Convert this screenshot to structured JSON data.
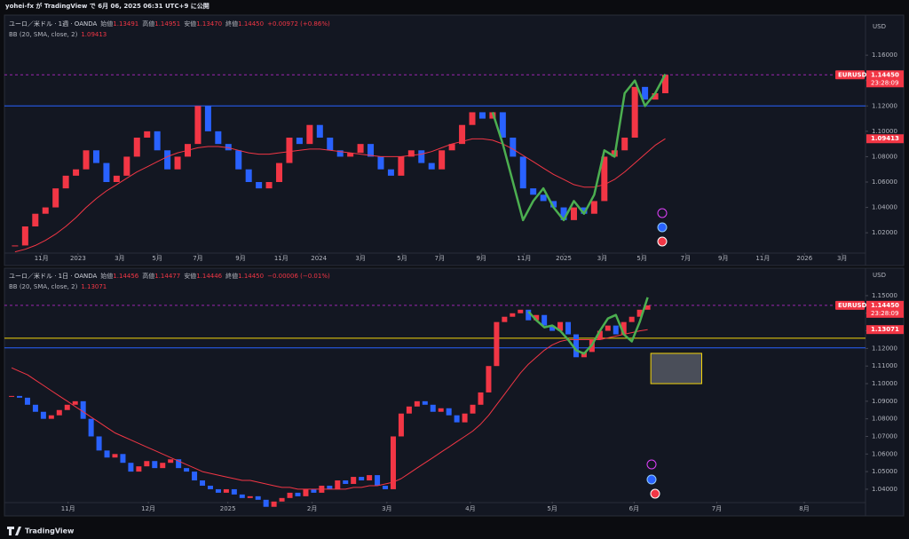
{
  "header": {
    "text": "yohei-fx が TradingView で 6月 06, 2025 06:31 UTC+9 に公開"
  },
  "footer": {
    "brand": "TradingView"
  },
  "chart_data": [
    {
      "type": "candlestick",
      "symbol": "ユーロ／米ドル · 1週 · OANDA",
      "ohlc": [
        {
          "label": "始値",
          "value": "1.13491"
        },
        {
          "label": "高値",
          "value": "1.14951"
        },
        {
          "label": "安値",
          "value": "1.13470"
        },
        {
          "label": "終値",
          "value": "1.14450"
        }
      ],
      "change": "+0.00972 (+0.86%)",
      "indicator": "BB (20, SMA, close, 2)",
      "bb_value": {
        "value": 1.09413,
        "label": "1.09413"
      },
      "currency": "USD",
      "ticker": "EURUSD",
      "last_price": {
        "value": 1.1445,
        "label": "1.14450"
      },
      "countdown": "23:28:09",
      "up_color": "#f23645",
      "down_color": "#2962ff",
      "values": [
        1.01,
        1.025,
        1.035,
        1.04,
        1.055,
        1.065,
        1.07,
        1.085,
        1.075,
        1.06,
        1.065,
        1.08,
        1.095,
        1.1,
        1.085,
        1.07,
        1.08,
        1.09,
        1.12,
        1.1,
        1.09,
        1.085,
        1.07,
        1.06,
        1.055,
        1.06,
        1.075,
        1.095,
        1.09,
        1.105,
        1.095,
        1.085,
        1.08,
        1.083,
        1.09,
        1.08,
        1.07,
        1.065,
        1.08,
        1.085,
        1.075,
        1.07,
        1.085,
        1.09,
        1.105,
        1.115,
        1.11,
        1.115,
        1.095,
        1.08,
        1.055,
        1.05,
        1.045,
        1.04,
        1.03,
        1.04,
        1.035,
        1.045,
        1.08,
        1.085,
        1.095,
        1.135,
        1.125,
        1.13,
        1.1445
      ],
      "series": [
        {
          "color": "#f23645",
          "values": [
            1.005,
            1.007,
            1.01,
            1.014,
            1.019,
            1.025,
            1.032,
            1.04,
            1.047,
            1.053,
            1.058,
            1.063,
            1.068,
            1.072,
            1.076,
            1.08,
            1.083,
            1.085,
            1.087,
            1.088,
            1.088,
            1.087,
            1.085,
            1.083,
            1.082,
            1.082,
            1.083,
            1.084,
            1.085,
            1.086,
            1.086,
            1.085,
            1.084,
            1.083,
            1.082,
            1.081,
            1.08,
            1.08,
            1.08,
            1.081,
            1.082,
            1.084,
            1.087,
            1.09,
            1.092,
            1.094,
            1.094,
            1.093,
            1.09,
            1.086,
            1.081,
            1.076,
            1.071,
            1.066,
            1.062,
            1.058,
            1.056,
            1.056,
            1.058,
            1.062,
            1.068,
            1.075,
            1.082,
            1.089,
            1.09413
          ]
        },
        {
          "color": "#4caf50",
          "values": [
            null,
            null,
            null,
            null,
            null,
            null,
            null,
            null,
            null,
            null,
            null,
            null,
            null,
            null,
            null,
            null,
            null,
            null,
            null,
            null,
            null,
            null,
            null,
            null,
            null,
            null,
            null,
            null,
            null,
            null,
            null,
            null,
            null,
            null,
            null,
            null,
            null,
            null,
            null,
            null,
            null,
            null,
            null,
            null,
            null,
            null,
            null,
            1.115,
            1.09,
            1.06,
            1.03,
            1.045,
            1.055,
            1.04,
            1.03,
            1.045,
            1.035,
            1.05,
            1.085,
            1.08,
            1.13,
            1.14,
            1.12,
            1.13,
            1.145
          ]
        }
      ],
      "hlines": [
        {
          "value": 1.12,
          "color": "#2962ff"
        }
      ],
      "xlim": [
        -1.04,
        83.7
      ],
      "xticks": [
        {
          "value": 2.6,
          "label": "11月"
        },
        {
          "value": 6.2,
          "label": "2023"
        },
        {
          "value": 10.3,
          "label": "3月"
        },
        {
          "value": 14.0,
          "label": "5月"
        },
        {
          "value": 18.0,
          "label": "7月"
        },
        {
          "value": 22.2,
          "label": "9月"
        },
        {
          "value": 26.2,
          "label": "11月"
        },
        {
          "value": 29.9,
          "label": "2024"
        },
        {
          "value": 34.0,
          "label": "3月"
        },
        {
          "value": 38.1,
          "label": "5月"
        },
        {
          "value": 41.8,
          "label": "7月"
        },
        {
          "value": 45.9,
          "label": "9月"
        },
        {
          "value": 50.1,
          "label": "11月"
        },
        {
          "value": 54.0,
          "label": "2025"
        },
        {
          "value": 57.8,
          "label": "3月"
        },
        {
          "value": 61.7,
          "label": "5月"
        },
        {
          "value": 66.0,
          "label": "7月"
        },
        {
          "value": 69.7,
          "label": "9月"
        },
        {
          "value": 73.6,
          "label": "11月"
        },
        {
          "value": 77.7,
          "label": "2026"
        },
        {
          "value": 81.4,
          "label": "3月"
        }
      ],
      "ylim": [
        1.004,
        1.186
      ],
      "yticks": [
        {
          "value": 1.02,
          "label": "1.02000"
        },
        {
          "value": 1.04,
          "label": "1.04000"
        },
        {
          "value": 1.06,
          "label": "1.06000"
        },
        {
          "value": 1.08,
          "label": "1.08000"
        },
        {
          "value": 1.1,
          "label": "1.10000"
        },
        {
          "value": 1.12,
          "label": "1.12000"
        },
        {
          "value": 1.14,
          "label": "1.14000"
        },
        {
          "value": 1.16,
          "label": "1.16000"
        }
      ]
    },
    {
      "type": "candlestick",
      "symbol": "ユーロ／米ドル · 1日 · OANDA",
      "ohlc": [
        {
          "label": "始値",
          "value": "1.14456"
        },
        {
          "label": "高値",
          "value": "1.14477"
        },
        {
          "label": "安値",
          "value": "1.14446"
        },
        {
          "label": "終値",
          "value": "1.14450"
        }
      ],
      "change": "−0.00006 (−0.01%)",
      "indicator": "BB (20, SMA, close, 2)",
      "bb_value": {
        "value": 1.13071,
        "label": "1.13071"
      },
      "currency": "USD",
      "ticker": "EURUSD",
      "last_price": {
        "value": 1.1445,
        "label": "1.14450"
      },
      "countdown": "23:28:09",
      "up_color": "#f23645",
      "down_color": "#2962ff",
      "values": [
        1.093,
        1.092,
        1.088,
        1.084,
        1.08,
        1.082,
        1.085,
        1.088,
        1.09,
        1.08,
        1.07,
        1.062,
        1.058,
        1.06,
        1.055,
        1.05,
        1.053,
        1.056,
        1.052,
        1.055,
        1.057,
        1.052,
        1.05,
        1.045,
        1.042,
        1.04,
        1.038,
        1.04,
        1.037,
        1.035,
        1.036,
        1.034,
        1.03,
        1.033,
        1.035,
        1.038,
        1.036,
        1.04,
        1.038,
        1.042,
        1.04,
        1.045,
        1.043,
        1.047,
        1.045,
        1.048,
        1.042,
        1.04,
        1.07,
        1.083,
        1.087,
        1.09,
        1.088,
        1.084,
        1.086,
        1.082,
        1.078,
        1.083,
        1.088,
        1.095,
        1.11,
        1.135,
        1.138,
        1.14,
        1.142,
        1.136,
        1.139,
        1.133,
        1.13,
        1.135,
        1.128,
        1.115,
        1.118,
        1.125,
        1.13,
        1.133,
        1.128,
        1.135,
        1.138,
        1.142,
        1.1445
      ],
      "series": [
        {
          "color": "#f23645",
          "values": [
            1.109,
            1.107,
            1.105,
            1.102,
            1.099,
            1.096,
            1.093,
            1.09,
            1.087,
            1.084,
            1.081,
            1.078,
            1.075,
            1.072,
            1.07,
            1.068,
            1.066,
            1.064,
            1.062,
            1.06,
            1.058,
            1.056,
            1.054,
            1.052,
            1.05,
            1.049,
            1.048,
            1.047,
            1.046,
            1.045,
            1.045,
            1.044,
            1.043,
            1.042,
            1.041,
            1.041,
            1.04,
            1.04,
            1.04,
            1.04,
            1.04,
            1.04,
            1.04,
            1.041,
            1.041,
            1.042,
            1.042,
            1.043,
            1.044,
            1.046,
            1.049,
            1.052,
            1.055,
            1.058,
            1.061,
            1.064,
            1.067,
            1.07,
            1.073,
            1.077,
            1.082,
            1.088,
            1.094,
            1.1,
            1.106,
            1.111,
            1.115,
            1.119,
            1.122,
            1.124,
            1.125,
            1.125,
            1.125,
            1.125,
            1.125,
            1.126,
            1.127,
            1.128,
            1.129,
            1.13,
            1.13071
          ]
        },
        {
          "color": "#4caf50",
          "values": [
            null,
            null,
            null,
            null,
            null,
            null,
            null,
            null,
            null,
            null,
            null,
            null,
            null,
            null,
            null,
            null,
            null,
            null,
            null,
            null,
            null,
            null,
            null,
            null,
            null,
            null,
            null,
            null,
            null,
            null,
            null,
            null,
            null,
            null,
            null,
            null,
            null,
            null,
            null,
            null,
            null,
            null,
            null,
            null,
            null,
            null,
            null,
            null,
            null,
            null,
            null,
            null,
            null,
            null,
            null,
            null,
            null,
            null,
            null,
            null,
            null,
            null,
            null,
            null,
            null,
            1.141,
            1.136,
            1.132,
            1.133,
            1.13,
            1.125,
            1.119,
            1.117,
            1.122,
            1.13,
            1.137,
            1.139,
            1.128,
            1.124,
            1.135,
            1.149
          ]
        }
      ],
      "hlines": [
        {
          "value": 1.1258,
          "color": "#f5d50b"
        },
        {
          "value": 1.1203,
          "color": "#2962ff"
        }
      ],
      "boxes": [
        {
          "x": [
            80.4,
            86.8
          ],
          "y": [
            1.1,
            1.1172
          ],
          "color": "#f5d50b"
        }
      ],
      "xlim": [
        -0.9,
        107.4
      ],
      "xticks": [
        {
          "value": 7.1,
          "label": "11月"
        },
        {
          "value": 17.2,
          "label": "12月"
        },
        {
          "value": 27.2,
          "label": "2025"
        },
        {
          "value": 37.8,
          "label": "2月"
        },
        {
          "value": 47.2,
          "label": "3月"
        },
        {
          "value": 57.7,
          "label": "4月"
        },
        {
          "value": 68.0,
          "label": "5月"
        },
        {
          "value": 78.3,
          "label": "6月"
        },
        {
          "value": 88.7,
          "label": "7月"
        },
        {
          "value": 99.7,
          "label": "8月"
        }
      ],
      "ylim": [
        1.0329,
        1.1641
      ],
      "yticks": [
        {
          "value": 1.04,
          "label": "1.04000"
        },
        {
          "value": 1.05,
          "label": "1.05000"
        },
        {
          "value": 1.06,
          "label": "1.06000"
        },
        {
          "value": 1.07,
          "label": "1.07000"
        },
        {
          "value": 1.08,
          "label": "1.08000"
        },
        {
          "value": 1.09,
          "label": "1.09000"
        },
        {
          "value": 1.1,
          "label": "1.10000"
        },
        {
          "value": 1.11,
          "label": "1.11000"
        },
        {
          "value": 1.12,
          "label": "1.12000"
        },
        {
          "value": 1.13,
          "label": "1.13000"
        },
        {
          "value": 1.14,
          "label": "1.14000"
        },
        {
          "value": 1.15,
          "label": "1.15000"
        }
      ]
    }
  ]
}
